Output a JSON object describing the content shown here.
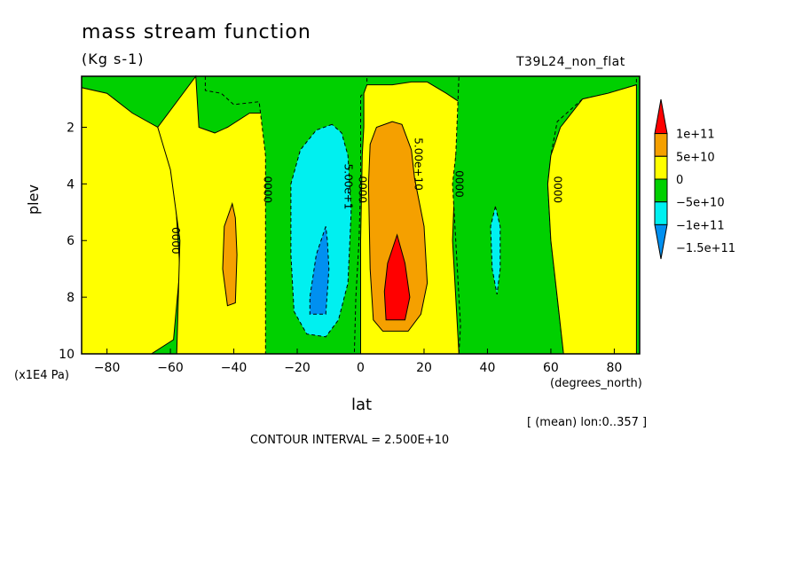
{
  "chart_data": {
    "type": "heatmap",
    "title": "mass stream function",
    "units": "(Kg s-1)",
    "experiment": "T39L24_non_flat",
    "xlabel": "lat",
    "xunit": "(degrees_north)",
    "ylabel": "plev",
    "yunit": "(x1E4 Pa)",
    "xlim": [
      -88,
      88
    ],
    "ylim": [
      10,
      0.2
    ],
    "xticks": [
      -80,
      -60,
      -40,
      -20,
      0,
      20,
      40,
      60,
      80
    ],
    "yticks": [
      2,
      4,
      6,
      8,
      10
    ],
    "mean_note": "[ (mean) lon:0..357 ]",
    "contour_interval_text": "CONTOUR INTERVAL = 2.500E+10",
    "contour_labels": [
      {
        "text": "0000",
        "lat": -59.5,
        "plev": 6.0
      },
      {
        "text": "0000",
        "lat": -30.5,
        "plev": 4.2
      },
      {
        "text": "5.00e+1",
        "lat": -5,
        "plev": 4.1
      },
      {
        "text": "0000",
        "lat": -0.5,
        "plev": 4.2
      },
      {
        "text": "5.00e+10",
        "lat": 17,
        "plev": 3.3
      },
      {
        "text": "0000",
        "lat": 30,
        "plev": 4.0
      },
      {
        "text": "0000",
        "lat": 61,
        "plev": 4.2
      }
    ],
    "levels": [
      {
        "label": "1e+11",
        "color": "#ff0000"
      },
      {
        "label": "5e+10",
        "color": "#f5a000"
      },
      {
        "label": "0",
        "color": "#ffff00"
      },
      {
        "label": "-5e+10",
        "color": "#00d000"
      },
      {
        "label": "-1e+11",
        "color": "#00f0f0"
      },
      {
        "label": "-1.5e+11",
        "color": "#0090f0"
      }
    ],
    "regions": [
      {
        "level": "0",
        "poly": [
          [
            -88,
            0.2
          ],
          [
            -88,
            10
          ],
          [
            -66,
            10
          ],
          [
            -59,
            9.5
          ],
          [
            -57,
            7
          ],
          [
            -59,
            3.5
          ],
          [
            -64,
            2.0
          ],
          [
            -72,
            1.5
          ],
          [
            -80,
            0.8
          ],
          [
            -88,
            0.6
          ]
        ]
      },
      {
        "level": "0",
        "poly": [
          [
            -52,
            0.2
          ],
          [
            -51,
            2
          ],
          [
            -46,
            2.2
          ],
          [
            -42,
            2.0
          ],
          [
            -35,
            1.5
          ],
          [
            -30,
            1.5
          ],
          [
            -29,
            3
          ],
          [
            -29,
            6
          ],
          [
            -29,
            10
          ],
          [
            -58,
            10
          ],
          [
            -57,
            6
          ],
          [
            -60,
            3.5
          ],
          [
            -64,
            2
          ]
        ]
      },
      {
        "level": "5e+10",
        "poly": [
          [
            -40.5,
            4.7
          ],
          [
            -43,
            5.5
          ],
          [
            -43.5,
            7
          ],
          [
            -42,
            8.3
          ],
          [
            -39.5,
            8.2
          ],
          [
            -39,
            6.5
          ],
          [
            -39.5,
            5.2
          ]
        ]
      },
      {
        "level": "-5e+10",
        "poly": [
          [
            -49,
            0.2
          ],
          [
            -49,
            0.7
          ],
          [
            -44,
            0.8
          ],
          [
            -40,
            1.2
          ],
          [
            -32,
            1.1
          ],
          [
            -30,
            3
          ],
          [
            -30,
            6
          ],
          [
            -30,
            10
          ],
          [
            -2,
            10
          ],
          [
            -1.5,
            8
          ],
          [
            -0.5,
            6
          ],
          [
            0,
            4
          ],
          [
            0,
            0.9
          ],
          [
            2,
            0.7
          ],
          [
            2,
            0.2
          ]
        ]
      },
      {
        "level": "-1e+11",
        "poly": [
          [
            -9,
            1.9
          ],
          [
            -14,
            2.1
          ],
          [
            -19,
            2.8
          ],
          [
            -22,
            4
          ],
          [
            -22,
            6.5
          ],
          [
            -21,
            8.5
          ],
          [
            -17,
            9.3
          ],
          [
            -11,
            9.4
          ],
          [
            -7,
            8.8
          ],
          [
            -4,
            7.5
          ],
          [
            -3,
            5
          ],
          [
            -4,
            3
          ],
          [
            -6,
            2.2
          ]
        ]
      },
      {
        "level": "-1.5e+11",
        "poly": [
          [
            -11,
            5.5
          ],
          [
            -14,
            6.5
          ],
          [
            -16,
            8
          ],
          [
            -16,
            8.6
          ],
          [
            -11,
            8.6
          ],
          [
            -10,
            7
          ],
          [
            -10.5,
            6
          ]
        ]
      },
      {
        "level": "0",
        "poly": [
          [
            1,
            0.8
          ],
          [
            2,
            0.5
          ],
          [
            10,
            0.5
          ],
          [
            16,
            0.4
          ],
          [
            21,
            0.4
          ],
          [
            27,
            0.8
          ],
          [
            31,
            1.1
          ],
          [
            32,
            2
          ],
          [
            30,
            3
          ],
          [
            29,
            6
          ],
          [
            31,
            10
          ],
          [
            0,
            10
          ],
          [
            0,
            6
          ],
          [
            0.5,
            3
          ],
          [
            1,
            2
          ]
        ]
      },
      {
        "level": "5e+10",
        "poly": [
          [
            10,
            1.8
          ],
          [
            5,
            2.0
          ],
          [
            3,
            2.6
          ],
          [
            2.5,
            4
          ],
          [
            3,
            7
          ],
          [
            4,
            8.8
          ],
          [
            7,
            9.2
          ],
          [
            15,
            9.2
          ],
          [
            19,
            8.6
          ],
          [
            21,
            7.5
          ],
          [
            20,
            5.5
          ],
          [
            17,
            3.8
          ],
          [
            16,
            2.8
          ],
          [
            13,
            1.9
          ]
        ]
      },
      {
        "level": "1e+11",
        "poly": [
          [
            11.5,
            5.8
          ],
          [
            8.5,
            6.8
          ],
          [
            7.5,
            7.8
          ],
          [
            8,
            8.8
          ],
          [
            14,
            8.8
          ],
          [
            15.5,
            8
          ],
          [
            14,
            6.8
          ]
        ]
      },
      {
        "level": "-5e+10",
        "poly": [
          [
            31,
            0.2
          ],
          [
            87,
            0.2
          ],
          [
            87,
            0.5
          ],
          [
            78,
            0.8
          ],
          [
            70,
            1.0
          ],
          [
            62,
            1.8
          ],
          [
            60,
            3.0
          ],
          [
            59,
            4
          ],
          [
            60,
            6
          ],
          [
            62,
            8
          ],
          [
            64,
            10
          ],
          [
            31,
            10
          ],
          [
            31.5,
            9
          ],
          [
            30,
            6
          ],
          [
            29,
            4
          ],
          [
            30,
            3
          ]
        ]
      },
      {
        "level": "-1e+11",
        "poly": [
          [
            42.5,
            4.8
          ],
          [
            41,
            5.5
          ],
          [
            41.5,
            7.0
          ],
          [
            43,
            7.9
          ],
          [
            44,
            7
          ],
          [
            44,
            5.5
          ]
        ]
      },
      {
        "level": "0",
        "poly": [
          [
            63,
            2
          ],
          [
            70,
            1.0
          ],
          [
            78,
            0.8
          ],
          [
            87,
            0.5
          ],
          [
            87,
            10
          ],
          [
            64,
            10
          ],
          [
            62,
            8
          ],
          [
            60,
            6
          ],
          [
            59,
            4
          ],
          [
            60,
            3
          ]
        ]
      }
    ]
  }
}
